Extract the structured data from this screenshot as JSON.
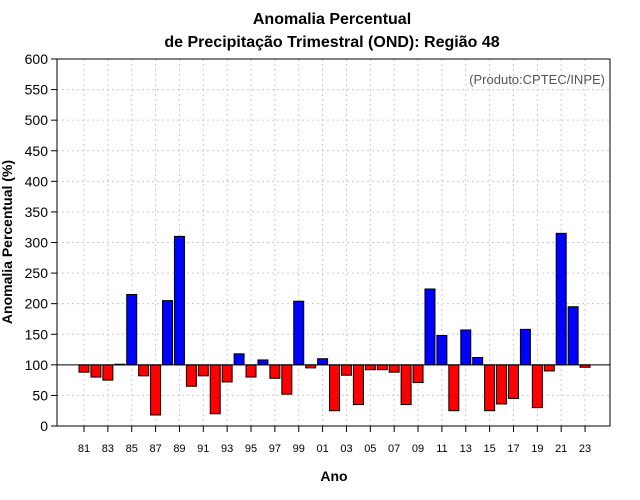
{
  "chart_data": {
    "type": "bar",
    "title": "Anomalia Percentual",
    "subtitle": "de Precipitação Trimestral (OND): Região 48",
    "xlabel": "Ano",
    "ylabel": "Anomalia Percentual (%)",
    "credit": "(Produto:CPTEC/INPE)",
    "baseline": 100,
    "ylim": [
      0,
      600
    ],
    "yticks": [
      0,
      50,
      100,
      150,
      200,
      250,
      300,
      350,
      400,
      450,
      500,
      550,
      600
    ],
    "xtick_labels": [
      "81",
      "83",
      "85",
      "87",
      "89",
      "91",
      "93",
      "95",
      "97",
      "99",
      "01",
      "03",
      "05",
      "07",
      "09",
      "11",
      "13",
      "15",
      "17",
      "19",
      "21",
      "23"
    ],
    "categories": [
      "81",
      "82",
      "83",
      "84",
      "85",
      "86",
      "87",
      "88",
      "89",
      "90",
      "91",
      "92",
      "93",
      "94",
      "95",
      "96",
      "97",
      "98",
      "99",
      "00",
      "01",
      "02",
      "03",
      "04",
      "05",
      "06",
      "07",
      "08",
      "09",
      "10",
      "11",
      "12",
      "13",
      "14",
      "15",
      "16",
      "17",
      "18",
      "19",
      "20",
      "21",
      "22",
      "23"
    ],
    "values": [
      88,
      80,
      75,
      101,
      215,
      82,
      18,
      205,
      310,
      65,
      82,
      20,
      72,
      118,
      80,
      108,
      78,
      52,
      204,
      95,
      110,
      25,
      83,
      35,
      92,
      92,
      88,
      35,
      71,
      224,
      148,
      25,
      157,
      112,
      25,
      36,
      45,
      158,
      30,
      90,
      315,
      195,
      96
    ],
    "grid": true,
    "colors": {
      "above": "#0000ff",
      "below": "#ff0000",
      "edge": "#000000",
      "grid": "#cccccc"
    }
  }
}
